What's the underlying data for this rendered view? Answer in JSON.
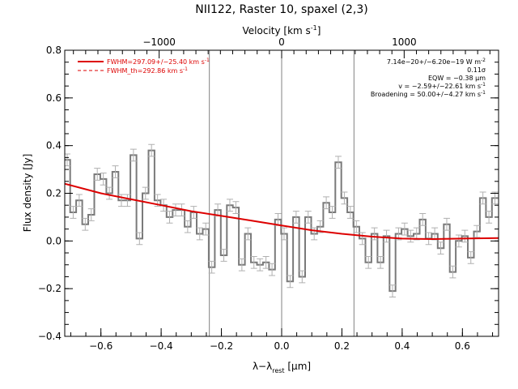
{
  "chart_data": {
    "type": "line",
    "title": "NII122, Raster 10, spaxel (2,3)",
    "xlabel": "λ−λ",
    "xlabel_sub": "rest",
    "xlabel_unit_pre": " [",
    "xlabel_unit_mu": "μ",
    "xlabel_unit_post": "m]",
    "ylabel": "Flux density [Jy]",
    "top_axis_label": "Velocity [km s",
    "top_axis_label_sup": "-1",
    "top_axis_label_end": "]",
    "xlim": [
      -0.72,
      0.72
    ],
    "ylim": [
      -0.4,
      0.8
    ],
    "x_ticks": [
      -0.6,
      -0.4,
      -0.2,
      0.0,
      0.2,
      0.4,
      0.6
    ],
    "x_tick_labels": [
      "−0.6",
      "−0.4",
      "−0.2",
      "0.0",
      "0.2",
      "0.4",
      "0.6"
    ],
    "y_ticks": [
      -0.4,
      -0.2,
      0.0,
      0.2,
      0.4,
      0.6,
      0.8
    ],
    "y_tick_labels": [
      "−0.4",
      "−0.2",
      "0.0",
      "0.2",
      "0.4",
      "0.6",
      "0.8"
    ],
    "top_ticks_velocity": [
      -1000,
      0,
      1000
    ],
    "top_tick_labels": [
      "−1000",
      "0",
      "1000"
    ],
    "rest_wavelength_um": 121.9,
    "vertical_lines_x": [
      -0.24,
      0.0,
      0.24
    ],
    "series": [
      {
        "name": "FWHM=297.09+/−25.40 km s",
        "name_sup": "-1",
        "style": "solid",
        "color": "#dd0000",
        "x": [
          -0.72,
          -0.6,
          -0.5,
          -0.4,
          -0.3,
          -0.2,
          -0.1,
          0.0,
          0.1,
          0.2,
          0.3,
          0.4,
          0.5,
          0.6,
          0.72
        ],
        "y": [
          0.24,
          0.2,
          0.175,
          0.15,
          0.125,
          0.105,
          0.085,
          0.065,
          0.045,
          0.03,
          0.018,
          0.01,
          0.008,
          0.01,
          0.012
        ]
      },
      {
        "name": "FWHM_th=292.86 km s",
        "name_sup": "-1",
        "style": "dashed",
        "color": "#dd0000"
      },
      {
        "name": "data",
        "style": "step",
        "color": "#808080",
        "x": [
          -0.712,
          -0.692,
          -0.672,
          -0.652,
          -0.632,
          -0.612,
          -0.592,
          -0.572,
          -0.552,
          -0.532,
          -0.512,
          -0.492,
          -0.472,
          -0.452,
          -0.432,
          -0.412,
          -0.392,
          -0.372,
          -0.352,
          -0.332,
          -0.312,
          -0.292,
          -0.272,
          -0.252,
          -0.232,
          -0.212,
          -0.192,
          -0.172,
          -0.152,
          -0.132,
          -0.112,
          -0.092,
          -0.072,
          -0.052,
          -0.032,
          -0.012,
          0.008,
          0.028,
          0.048,
          0.068,
          0.088,
          0.108,
          0.128,
          0.148,
          0.168,
          0.188,
          0.208,
          0.228,
          0.248,
          0.268,
          0.288,
          0.308,
          0.328,
          0.348,
          0.368,
          0.388,
          0.408,
          0.428,
          0.448,
          0.468,
          0.488,
          0.508,
          0.528,
          0.548,
          0.568,
          0.588,
          0.608,
          0.628,
          0.648,
          0.668,
          0.688,
          0.708
        ],
        "y": [
          0.34,
          0.12,
          0.17,
          0.07,
          0.11,
          0.28,
          0.26,
          0.2,
          0.29,
          0.17,
          0.17,
          0.36,
          0.01,
          0.2,
          0.38,
          0.17,
          0.15,
          0.1,
          0.13,
          0.13,
          0.06,
          0.12,
          0.03,
          0.05,
          -0.11,
          0.13,
          -0.06,
          0.15,
          0.14,
          -0.1,
          0.03,
          -0.09,
          -0.1,
          -0.09,
          -0.12,
          0.09,
          0.03,
          -0.17,
          0.1,
          -0.15,
          0.1,
          0.03,
          0.06,
          0.16,
          0.12,
          0.33,
          0.18,
          0.12,
          0.06,
          0.01,
          -0.09,
          0.03,
          -0.09,
          0.02,
          -0.21,
          0.03,
          0.05,
          0.02,
          0.03,
          0.09,
          0.01,
          0.03,
          -0.03,
          0.07,
          -0.13,
          0.0,
          0.02,
          -0.07,
          0.04,
          0.18,
          0.1,
          0.18
        ],
        "errors": 0.025
      }
    ],
    "annotations": [
      {
        "pre": "7.14e−20+/−6.20e−19 W m",
        "sup": "-2",
        "post": ""
      },
      {
        "pre": "0.11σ",
        "sup": "",
        "post": ""
      },
      {
        "pre": "EQW = −0.38 ",
        "mu": "μ",
        "post": "m"
      },
      {
        "pre": "v = −2.59+/−22.61 km s",
        "sup": "-1",
        "post": ""
      },
      {
        "pre": "Broadening = 50.00+/−4.27 km s",
        "sup": "-1",
        "post": ""
      }
    ],
    "legend_position": "top-left",
    "annotation_position": "top-right",
    "grid": false
  }
}
